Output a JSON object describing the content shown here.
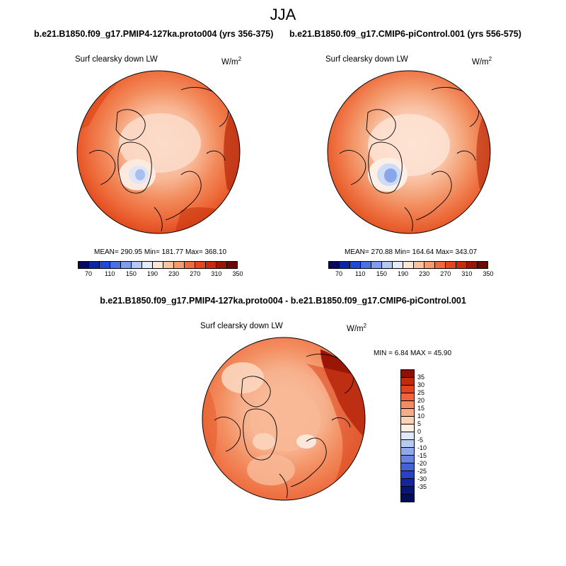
{
  "suptitle": "JJA",
  "panels": {
    "test": {
      "case_title": "b.e21.B1850.f09_g17.PMIP4-127ka.proto004 (yrs 356-375)",
      "var_label": "Surf clearsky down LW",
      "units": "W/m",
      "units_sup": "2",
      "stats": "MEAN= 290.95  Min= 181.77  Max= 368.10"
    },
    "ctrl": {
      "case_title": "b.e21.B1850.f09_g17.CMIP6-piControl.001 (yrs 556-575)",
      "var_label": "Surf clearsky down LW",
      "units": "W/m",
      "units_sup": "2",
      "stats": "MEAN= 270.88  Min= 164.64  Max= 343.07"
    },
    "diff": {
      "case_title": "b.e21.B1850.f09_g17.PMIP4-127ka.proto004 - b.e21.B1850.f09_g17.CMIP6-piControl.001",
      "var_label": "Surf clearsky down LW",
      "units": "W/m",
      "units_sup": "2",
      "stats": "MIN =  6.84 MAX =  45.90"
    }
  },
  "abs_colorbar": {
    "colors": [
      "#08085e",
      "#0a27a8",
      "#2049d8",
      "#4a70e6",
      "#7d9ef0",
      "#b2c8f5",
      "#e2ecfb",
      "#fde6d6",
      "#f9c3a2",
      "#f69a6f",
      "#f06a3f",
      "#e34620",
      "#c92a10",
      "#9b1607",
      "#6a0a02"
    ],
    "tick_labels": [
      "70",
      "110",
      "150",
      "190",
      "230",
      "270",
      "310",
      "350"
    ]
  },
  "diff_colorbar": {
    "colors": [
      "#8e1004",
      "#c22a0c",
      "#e14320",
      "#f0643a",
      "#f58a5d",
      "#f8ad86",
      "#fcd2b4",
      "#fdeee0",
      "#dde9f8",
      "#b7cbf2",
      "#8ea9ec",
      "#6685e2",
      "#4362d8",
      "#2941c4",
      "#13259f",
      "#081578",
      "#030c5a"
    ],
    "tick_labels": [
      "35",
      "30",
      "25",
      "20",
      "15",
      "10",
      "5",
      "0",
      "-5",
      "-10",
      "-15",
      "-20",
      "-25",
      "-30",
      "-35"
    ]
  }
}
